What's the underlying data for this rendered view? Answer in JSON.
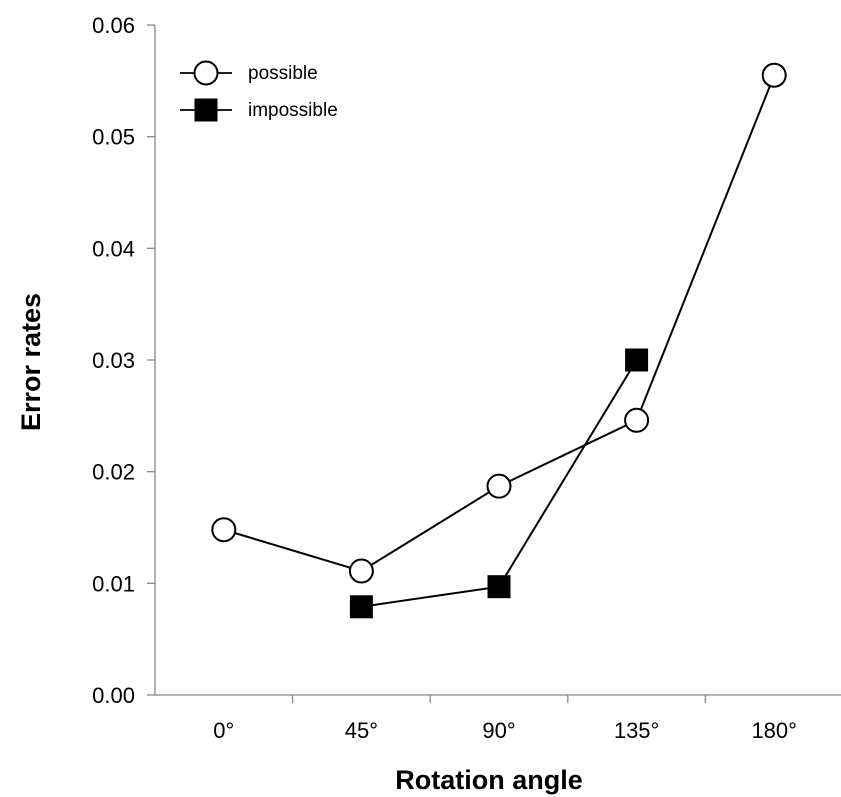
{
  "chart_data": {
    "type": "line",
    "title": "",
    "xlabel": "Rotation angle",
    "ylabel": "Error rates",
    "categories": [
      "0°",
      "45°",
      "90°",
      "135°",
      "180°"
    ],
    "ylim": [
      0,
      0.06
    ],
    "yticks": [
      "0.00",
      "0.01",
      "0.02",
      "0.03",
      "0.04",
      "0.05",
      "0.06"
    ],
    "grid": false,
    "legend_position": "top-left",
    "series": [
      {
        "name": "possible",
        "marker": "open-circle",
        "values": [
          0.0148,
          0.0111,
          0.0187,
          0.0246,
          0.0555
        ]
      },
      {
        "name": "impossible",
        "marker": "filled-square",
        "values": [
          null,
          0.0079,
          0.0097,
          0.03,
          null
        ]
      }
    ],
    "colors": {
      "line": "#000000",
      "marker_fill_open": "#ffffff",
      "marker_fill_solid": "#000000",
      "axis": "#888888"
    }
  }
}
